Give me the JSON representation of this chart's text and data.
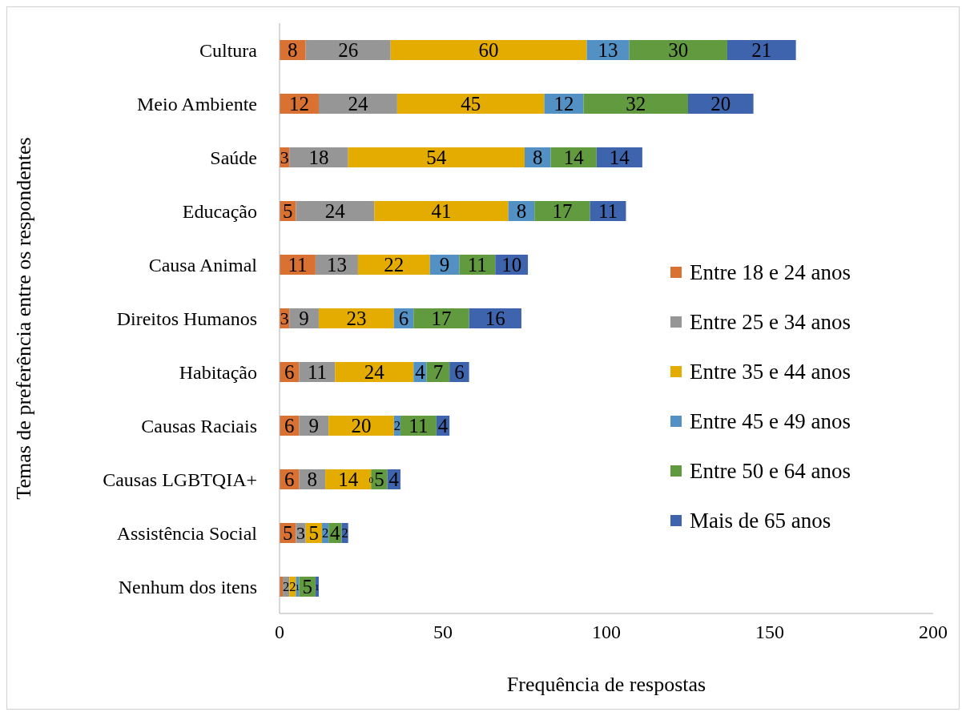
{
  "chart_data": {
    "type": "bar",
    "orientation": "horizontal",
    "stacked": true,
    "xlabel": "Frequência de respostas",
    "ylabel": "Temas de preferência entre os respondentes",
    "categories": [
      "Cultura",
      "Meio Ambiente",
      "Saúde",
      "Educação",
      "Causa Animal",
      "Direitos Humanos",
      "Habitação",
      "Causas Raciais",
      "Causas LGBTQIA+",
      "Assistência Social",
      "Nenhum dos itens"
    ],
    "series": [
      {
        "name": "Entre 18 e 24 anos",
        "color": "#d87132",
        "values": [
          8,
          12,
          3,
          5,
          11,
          3,
          6,
          6,
          6,
          5,
          1
        ],
        "value_labels": [
          "8",
          "12",
          "3",
          "5",
          "11",
          "3",
          "6",
          "6",
          "6",
          "5",
          null
        ]
      },
      {
        "name": "Entre 25 e 34 anos",
        "color": "#969696",
        "values": [
          26,
          24,
          18,
          24,
          13,
          9,
          11,
          9,
          8,
          3,
          2
        ],
        "value_labels": [
          "26",
          "24",
          "18",
          "24",
          "13",
          "9",
          "11",
          "9",
          "8",
          "3",
          "2"
        ]
      },
      {
        "name": "Entre 35 e 44 anos",
        "color": "#e5ac00",
        "values": [
          60,
          45,
          54,
          41,
          22,
          23,
          24,
          20,
          14,
          5,
          2
        ],
        "value_labels": [
          "60",
          "45",
          "54",
          "41",
          "22",
          "23",
          "24",
          "20",
          "14",
          "5",
          "2"
        ]
      },
      {
        "name": "Entre 45 e 49 anos",
        "color": "#5390c4",
        "values": [
          13,
          12,
          8,
          8,
          9,
          6,
          4,
          2,
          0,
          2,
          1
        ],
        "value_labels": [
          "13",
          "12",
          "8",
          "8",
          "9",
          "6",
          "4",
          "2",
          "0",
          "2",
          "1"
        ]
      },
      {
        "name": "Entre 50 e 64 anos",
        "color": "#629a3f",
        "values": [
          30,
          32,
          14,
          17,
          11,
          17,
          7,
          11,
          5,
          4,
          5
        ],
        "value_labels": [
          "30",
          "32",
          "14",
          "17",
          "11",
          "17",
          "7",
          "11",
          "5",
          "4",
          "5"
        ]
      },
      {
        "name": "Mais de 65 anos",
        "color": "#3e64ad",
        "values": [
          21,
          20,
          14,
          11,
          10,
          16,
          6,
          4,
          4,
          2,
          1
        ],
        "value_labels": [
          "21",
          "20",
          "14",
          "11",
          "10",
          "16",
          "6",
          "4",
          "4",
          "2",
          "1"
        ]
      }
    ],
    "xlim": [
      0,
      200
    ],
    "xticks": [
      0,
      50,
      100,
      150,
      200
    ],
    "grid": false,
    "legend": "right"
  }
}
